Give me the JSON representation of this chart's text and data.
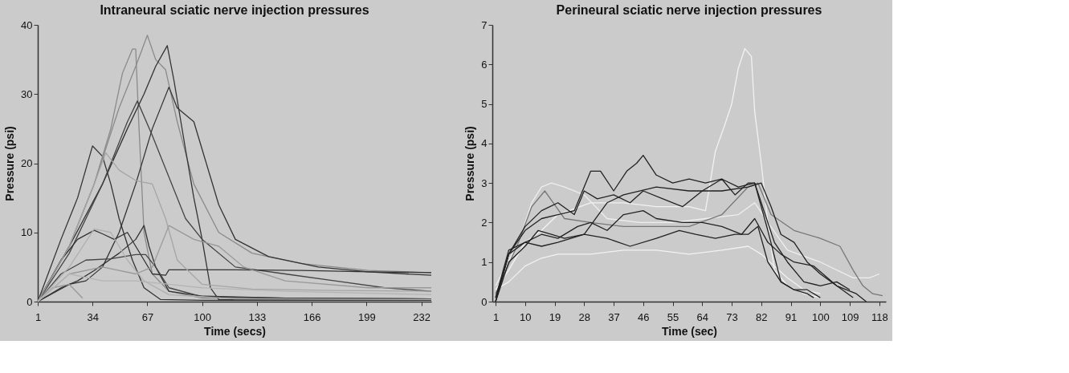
{
  "chart_data": [
    {
      "type": "line",
      "title": "Intraneural sciatic nerve injection pressures",
      "xlabel": "Time (secs)",
      "ylabel": "Pressure (psi)",
      "xlim": [
        1,
        238
      ],
      "xticks": [
        1,
        34,
        67,
        100,
        133,
        166,
        199,
        232
      ],
      "ylim": [
        0,
        40
      ],
      "yticks": [
        0,
        10,
        20,
        30,
        40
      ],
      "grid": false,
      "legend": false,
      "marker": "none",
      "line_style": "solid",
      "series": [
        {
          "color": "#333333",
          "x": [
            1,
            15,
            25,
            34,
            40,
            45,
            50,
            58,
            65,
            75,
            100,
            238
          ],
          "values": [
            0,
            9,
            15,
            22.5,
            21,
            17,
            12,
            6,
            2,
            0.3,
            0.2,
            0.2
          ]
        },
        {
          "color": "#8a8a8a",
          "x": [
            1,
            20,
            35,
            45,
            52,
            58,
            60,
            62,
            65,
            70,
            80,
            100,
            238
          ],
          "values": [
            0,
            8,
            17,
            25,
            33,
            36.5,
            36.5,
            25,
            10,
            4,
            1.5,
            0.5,
            0.3
          ]
        },
        {
          "color": "#8a8a8a",
          "x": [
            1,
            20,
            35,
            50,
            60,
            67,
            72,
            78,
            85,
            95,
            110,
            130,
            160,
            200,
            238
          ],
          "values": [
            0,
            8,
            17,
            28,
            34,
            38.5,
            35,
            33.5,
            26,
            17,
            10,
            7,
            5.5,
            4.5,
            4.2
          ]
        },
        {
          "color": "#333333",
          "x": [
            1,
            20,
            40,
            55,
            65,
            72,
            79,
            83,
            90,
            95,
            100,
            105,
            110,
            238
          ],
          "values": [
            0,
            8,
            17,
            25,
            30,
            34,
            37,
            32,
            22,
            15,
            9,
            2,
            0.3,
            0.2
          ]
        },
        {
          "color": "#333333",
          "x": [
            1,
            20,
            30,
            40,
            50,
            60,
            70,
            80,
            85,
            95,
            100,
            110,
            120,
            140,
            170,
            200,
            238
          ],
          "values": [
            0,
            2.5,
            3,
            5,
            10,
            17,
            25,
            31,
            28,
            26,
            22,
            14,
            9,
            6.5,
            5,
            4.3,
            3.8
          ]
        },
        {
          "color": "#444444",
          "x": [
            1,
            20,
            40,
            55,
            61,
            70,
            80,
            90,
            100,
            120,
            150,
            180,
            210,
            238
          ],
          "values": [
            0,
            7,
            17,
            26,
            29,
            24,
            18,
            12,
            9,
            5,
            4,
            3,
            2,
            1.5
          ]
        },
        {
          "color": "#333333",
          "x": [
            1,
            15,
            25,
            35,
            40,
            47,
            55,
            60,
            70,
            78,
            80,
            120,
            160,
            200,
            238
          ],
          "values": [
            0,
            6,
            9,
            10.3,
            9.8,
            9,
            10,
            8,
            4,
            3.8,
            4.6,
            4.6,
            4.5,
            4.3,
            4.2
          ]
        },
        {
          "color": "#333333",
          "x": [
            1,
            15,
            25,
            35,
            50,
            60,
            65,
            68,
            72,
            80,
            100,
            150,
            238
          ],
          "values": [
            0,
            2,
            3,
            4.5,
            7,
            9,
            11,
            8,
            5,
            1.5,
            0.8,
            0.5,
            0.4
          ]
        },
        {
          "color": "#444444",
          "x": [
            1,
            15,
            30,
            45,
            60,
            66,
            72,
            80,
            100,
            150,
            238
          ],
          "values": [
            0,
            4,
            6,
            6.2,
            6.8,
            6.8,
            5,
            2,
            0.7,
            0.5,
            0.4
          ]
        },
        {
          "color": "#a5a5a5",
          "x": [
            1,
            20,
            35,
            42,
            50,
            60,
            70,
            78,
            85,
            100,
            130,
            180,
            238
          ],
          "values": [
            0,
            8,
            17,
            21.5,
            19,
            17.5,
            17,
            12,
            6,
            2.5,
            1.8,
            1.6,
            1.5
          ]
        },
        {
          "color": "#999999",
          "x": [
            1,
            20,
            40,
            60,
            70,
            80,
            95,
            110,
            125,
            150,
            200,
            238
          ],
          "values": [
            0,
            4,
            5,
            4,
            5,
            11,
            9,
            8,
            5,
            3,
            2,
            2
          ]
        },
        {
          "color": "#999999",
          "x": [
            1,
            10,
            20,
            28
          ],
          "values": [
            0,
            2,
            2.5,
            0.5
          ]
        },
        {
          "color": "#b0b0b0",
          "x": [
            1,
            20,
            35,
            45,
            55,
            65,
            80,
            120,
            238
          ],
          "values": [
            0,
            5,
            10.5,
            10,
            6,
            3,
            1,
            0.4,
            0.3
          ]
        },
        {
          "color": "#b5b5b5",
          "x": [
            1,
            20,
            40,
            60,
            80,
            100,
            150,
            238
          ],
          "values": [
            0,
            4,
            3,
            3,
            2.5,
            2,
            1.5,
            1
          ]
        }
      ]
    },
    {
      "type": "line",
      "title": "Perineural sciatic nerve injection pressures",
      "xlabel": "Time (sec)",
      "ylabel": "Pressure (psi)",
      "xlim": [
        0,
        120
      ],
      "xticks": [
        1,
        10,
        19,
        28,
        37,
        46,
        55,
        64,
        73,
        82,
        91,
        100,
        109,
        118
      ],
      "ylim": [
        0,
        7
      ],
      "yticks": [
        0,
        1,
        2,
        3,
        4,
        5,
        6,
        7
      ],
      "grid": false,
      "legend": false,
      "marker": "none",
      "line_style": "solid",
      "series": [
        {
          "color": "#f2f2f2",
          "x": [
            1,
            5,
            10,
            15,
            20,
            30,
            40,
            50,
            60,
            65,
            68,
            71,
            73,
            75,
            77,
            79,
            80,
            82,
            84,
            86,
            90,
            95,
            100
          ],
          "values": [
            0.3,
            0.8,
            1.5,
            1.8,
            2.2,
            2.5,
            2.5,
            2.4,
            2.4,
            2.3,
            3.8,
            4.5,
            5,
            5.9,
            6.4,
            6.2,
            4.8,
            3.5,
            2,
            0.8,
            0.4,
            0.2,
            0.1
          ]
        },
        {
          "color": "#f2f2f2",
          "x": [
            1,
            5,
            10,
            15,
            20,
            30,
            40,
            50,
            60,
            70,
            78,
            82,
            86,
            90,
            95,
            100
          ],
          "values": [
            0.3,
            0.5,
            0.9,
            1.1,
            1.2,
            1.2,
            1.3,
            1.3,
            1.2,
            1.3,
            1.4,
            1.2,
            0.9,
            0.6,
            0.3,
            0.2
          ]
        },
        {
          "color": "#eeeeee",
          "x": [
            1,
            8,
            12,
            15,
            18,
            22,
            28,
            35,
            45,
            55,
            65,
            75,
            80,
            84,
            90,
            100,
            110,
            115,
            118
          ],
          "values": [
            0.4,
            1.5,
            2.5,
            2.9,
            3.0,
            2.9,
            2.7,
            2.1,
            2.0,
            2.0,
            2.1,
            2.2,
            2.5,
            2.0,
            1.3,
            1.0,
            0.6,
            0.6,
            0.7
          ]
        },
        {
          "color": "#777777",
          "x": [
            1,
            8,
            12,
            16,
            22,
            30,
            40,
            50,
            60,
            70,
            78,
            81,
            85,
            92,
            100,
            106,
            110,
            113,
            116,
            119
          ],
          "values": [
            0.2,
            1.5,
            2.4,
            2.8,
            2.1,
            2.0,
            1.9,
            1.9,
            1.9,
            2.2,
            2.9,
            3.0,
            2.2,
            1.8,
            1.6,
            1.4,
            0.8,
            0.4,
            0.2,
            0.15
          ]
        },
        {
          "color": "#222222",
          "x": [
            1,
            5,
            10,
            15,
            20,
            25,
            30,
            33,
            37,
            41,
            44,
            46,
            50,
            55,
            60,
            65,
            70,
            75,
            80,
            82,
            86,
            90,
            95,
            100,
            105,
            109
          ],
          "values": [
            0,
            1.2,
            1.8,
            2.1,
            2.2,
            2.3,
            3.3,
            3.3,
            2.8,
            3.3,
            3.5,
            3.7,
            3.2,
            3.0,
            3.1,
            3.0,
            3.1,
            2.9,
            3.0,
            2.5,
            1.5,
            1.0,
            0.5,
            0.4,
            0.5,
            0.3
          ]
        },
        {
          "color": "#222222",
          "x": [
            1,
            5,
            10,
            15,
            20,
            25,
            28,
            32,
            37,
            42,
            46,
            52,
            58,
            64,
            70,
            74,
            78,
            80,
            84,
            88,
            92,
            96,
            100
          ],
          "values": [
            0.1,
            1.2,
            1.9,
            2.3,
            2.5,
            2.2,
            2.8,
            2.6,
            2.7,
            2.5,
            2.8,
            2.6,
            2.4,
            2.8,
            3.1,
            2.7,
            3.0,
            3.0,
            1.8,
            0.5,
            0.3,
            0.3,
            0.1
          ]
        },
        {
          "color": "#222222",
          "x": [
            1,
            5,
            10,
            15,
            20,
            26,
            30,
            35,
            40,
            46,
            50,
            58,
            64,
            70,
            76,
            80,
            84,
            88,
            92,
            98,
            105,
            110
          ],
          "values": [
            0,
            1.2,
            1.5,
            1.7,
            1.6,
            1.9,
            2.0,
            1.8,
            2.2,
            2.3,
            2.1,
            2.0,
            2.0,
            1.9,
            1.7,
            2.1,
            1.5,
            1.2,
            1.0,
            0.9,
            0.4,
            0.1
          ]
        },
        {
          "color": "#222222",
          "x": [
            1,
            5,
            10,
            14,
            18,
            22,
            28,
            35,
            42,
            50,
            57,
            62,
            68,
            74,
            78,
            81,
            84,
            88,
            92,
            96,
            98
          ],
          "values": [
            0,
            1.0,
            1.4,
            1.8,
            1.7,
            1.6,
            1.7,
            1.6,
            1.4,
            1.6,
            1.8,
            1.7,
            1.6,
            1.7,
            1.7,
            1.9,
            1.0,
            0.5,
            0.3,
            0.2,
            0.1
          ]
        },
        {
          "color": "#222222",
          "x": [
            1,
            5,
            10,
            15,
            20,
            28,
            35,
            40,
            50,
            60,
            70,
            78,
            82,
            85,
            88,
            92,
            96,
            100,
            105,
            111,
            114
          ],
          "values": [
            0.1,
            1.3,
            1.5,
            1.4,
            1.5,
            1.7,
            2.5,
            2.7,
            2.9,
            2.8,
            2.8,
            2.9,
            3.0,
            2.4,
            1.7,
            1.5,
            1.0,
            0.7,
            0.4,
            0.2,
            0
          ]
        }
      ]
    }
  ]
}
